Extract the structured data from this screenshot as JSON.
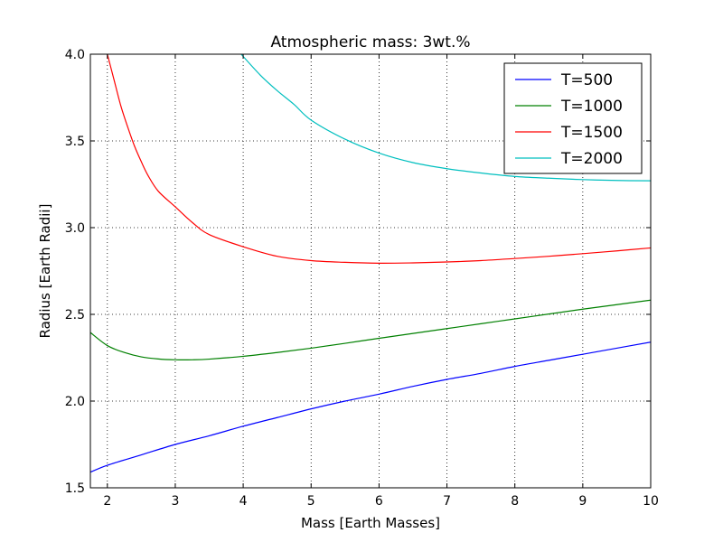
{
  "chart_data": {
    "type": "line",
    "title": "Atmospheric mass: 3wt.%",
    "xlabel": "Mass [Earth Masses]",
    "ylabel": "Radius [Earth Radii]",
    "xlim": [
      1.75,
      10
    ],
    "ylim": [
      1.5,
      4.0
    ],
    "xticks": [
      "2",
      "3",
      "4",
      "5",
      "6",
      "7",
      "8",
      "9",
      "10"
    ],
    "yticks": [
      "1.5",
      "2.0",
      "2.5",
      "3.0",
      "3.5",
      "4.0"
    ],
    "grid": true,
    "legend_position": "top-right",
    "series": [
      {
        "name": "T=500",
        "color": "#0000ff",
        "x": [
          1.75,
          2,
          2.5,
          3,
          3.5,
          4,
          4.5,
          5,
          5.5,
          6,
          6.5,
          7,
          7.5,
          8,
          8.5,
          9,
          9.5,
          10
        ],
        "y": [
          1.59,
          1.63,
          1.69,
          1.75,
          1.8,
          1.855,
          1.905,
          1.955,
          2.0,
          2.04,
          2.085,
          2.125,
          2.16,
          2.2,
          2.235,
          2.27,
          2.305,
          2.34
        ]
      },
      {
        "name": "T=1000",
        "color": "#008000",
        "x": [
          1.75,
          2,
          2.25,
          2.5,
          2.75,
          3,
          3.25,
          3.5,
          4,
          4.5,
          5,
          5.5,
          6,
          6.5,
          7,
          7.5,
          8,
          8.5,
          9,
          9.5,
          10
        ],
        "y": [
          2.395,
          2.32,
          2.28,
          2.255,
          2.243,
          2.238,
          2.238,
          2.242,
          2.258,
          2.28,
          2.305,
          2.333,
          2.362,
          2.39,
          2.418,
          2.446,
          2.474,
          2.502,
          2.53,
          2.556,
          2.582
        ]
      },
      {
        "name": "T=1500",
        "color": "#ff0000",
        "x": [
          2.0,
          2.1,
          2.2,
          2.3,
          2.4,
          2.5,
          2.6,
          2.75,
          3,
          3.25,
          3.5,
          4,
          4.5,
          5,
          5.5,
          6,
          6.5,
          7,
          7.5,
          8,
          8.5,
          9,
          9.5,
          10
        ],
        "y": [
          4.0,
          3.85,
          3.7,
          3.58,
          3.47,
          3.38,
          3.3,
          3.21,
          3.12,
          3.03,
          2.96,
          2.89,
          2.835,
          2.81,
          2.8,
          2.795,
          2.797,
          2.802,
          2.81,
          2.822,
          2.835,
          2.85,
          2.866,
          2.883
        ]
      },
      {
        "name": "T=2000",
        "color": "#00bfbf",
        "x": [
          3.97,
          4.25,
          4.5,
          4.75,
          5,
          5.5,
          6,
          6.5,
          7,
          7.5,
          8,
          8.5,
          9,
          9.5,
          10
        ],
        "y": [
          4.0,
          3.88,
          3.79,
          3.71,
          3.62,
          3.51,
          3.43,
          3.375,
          3.34,
          3.315,
          3.295,
          3.285,
          3.277,
          3.272,
          3.27
        ]
      }
    ]
  }
}
